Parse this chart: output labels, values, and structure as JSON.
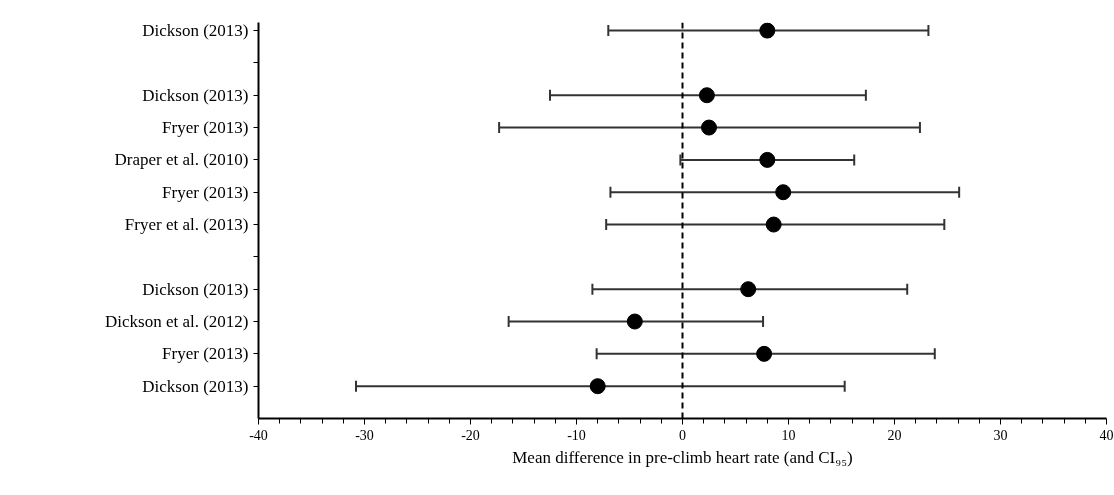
{
  "chart_data": {
    "type": "scatter",
    "orientation": "horizontal",
    "xlabel": "Mean difference in pre-climb heart rate (and CI₉₅)",
    "categories": [
      "Dickson (2013)",
      null,
      "Dickson (2013)",
      "Fryer (2013)",
      "Draper et al. (2010)",
      "Fryer (2013)",
      "Fryer et al. (2013)",
      null,
      "Dickson (2013)",
      "Dickson et al. (2012)",
      "Fryer (2013)",
      "Dickson (2013)"
    ],
    "values": [
      8.0,
      null,
      2.3,
      2.5,
      8.0,
      9.5,
      8.6,
      null,
      6.2,
      -4.5,
      7.7,
      -8.0
    ],
    "errors": [
      [
        -7.0,
        23.2
      ],
      null,
      [
        -12.5,
        17.3
      ],
      [
        -17.3,
        22.4
      ],
      [
        -0.2,
        16.2
      ],
      [
        -6.8,
        26.1
      ],
      [
        -7.2,
        24.7
      ],
      null,
      [
        -8.5,
        21.2
      ],
      [
        -16.4,
        7.6
      ],
      [
        -8.1,
        23.8
      ],
      [
        -30.8,
        15.3
      ]
    ],
    "color": "#000000",
    "marker": "circle",
    "grid": false,
    "xlim": [
      -40,
      40
    ],
    "xticks": [
      -40,
      {
        "value": -38,
        "label": null
      },
      {
        "value": -36,
        "label": null
      },
      {
        "value": -34,
        "label": null
      },
      {
        "value": -32,
        "label": null
      },
      -30,
      {
        "value": -28,
        "label": null
      },
      {
        "value": -26,
        "label": null
      },
      {
        "value": -24,
        "label": null
      },
      {
        "value": -22,
        "label": null
      },
      -20,
      {
        "value": -18,
        "label": null
      },
      {
        "value": -16,
        "label": null
      },
      {
        "value": -14,
        "label": null
      },
      {
        "value": -12,
        "label": null
      },
      -10,
      {
        "value": -8,
        "label": null
      },
      {
        "value": -6,
        "label": null
      },
      {
        "value": -4,
        "label": null
      },
      {
        "value": -2,
        "label": null
      },
      0,
      {
        "value": 2,
        "label": null
      },
      {
        "value": 4,
        "label": null
      },
      {
        "value": 6,
        "label": null
      },
      {
        "value": 8,
        "label": null
      },
      10,
      {
        "value": 12,
        "label": null
      },
      {
        "value": 14,
        "label": null
      },
      {
        "value": 16,
        "label": null
      },
      {
        "value": 18,
        "label": null
      },
      20,
      {
        "value": 22,
        "label": null
      },
      {
        "value": 24,
        "label": null
      },
      {
        "value": 26,
        "label": null
      },
      {
        "value": 28,
        "label": null
      },
      30,
      {
        "value": 32,
        "label": null
      },
      {
        "value": 34,
        "label": null
      },
      {
        "value": 36,
        "label": null
      },
      {
        "value": 38,
        "label": null
      },
      40
    ],
    "ref_lines": [
      {
        "axis": "x",
        "value": 0,
        "line_style": "dashed",
        "color": "#000000"
      }
    ]
  }
}
